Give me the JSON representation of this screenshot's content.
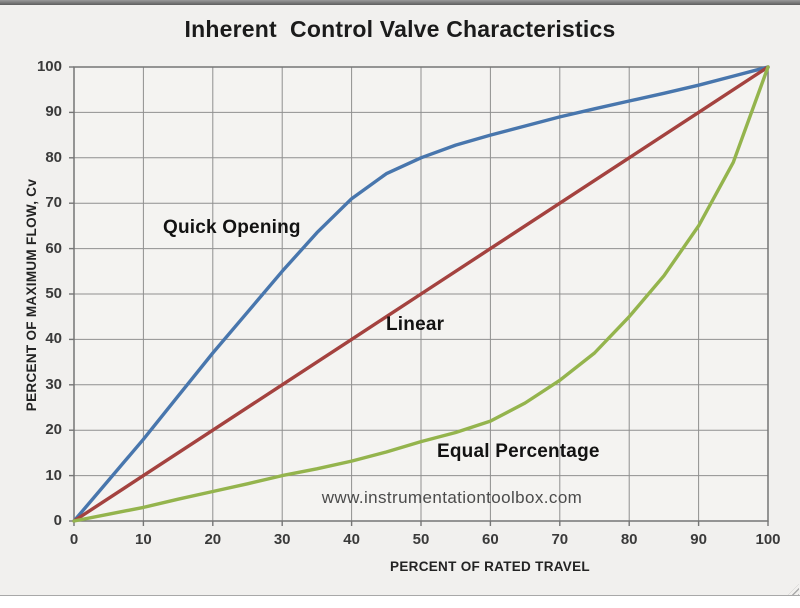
{
  "page": {
    "title": "Inherent  Control Valve Characteristics",
    "watermark": "www.instrumentationtoolbox.com"
  },
  "chart_data": {
    "type": "line",
    "title": "Inherent Control Valve Characteristics",
    "xlabel": "PERCENT OF RATED TRAVEL",
    "ylabel": "PERCENT OF MAXIMUM FLOW, Cv",
    "xlim": [
      0,
      100
    ],
    "ylim": [
      0,
      100
    ],
    "x_ticks": [
      0,
      10,
      20,
      30,
      40,
      50,
      60,
      70,
      80,
      90,
      100
    ],
    "y_ticks": [
      0,
      10,
      20,
      30,
      40,
      50,
      60,
      70,
      80,
      90,
      100
    ],
    "grid": true,
    "legend_position": "inline-labels",
    "plot_bg": "#f4f3f1",
    "gridline_color": "#8f8f8f",
    "border_color": "#757575",
    "series": [
      {
        "name": "Quick Opening",
        "color": "#4876ad",
        "points": [
          [
            0,
            0
          ],
          [
            5,
            9
          ],
          [
            10,
            18
          ],
          [
            15,
            27.5
          ],
          [
            20,
            37
          ],
          [
            25,
            46
          ],
          [
            30,
            55
          ],
          [
            35,
            63.5
          ],
          [
            40,
            71
          ],
          [
            45,
            76.5
          ],
          [
            50,
            80
          ],
          [
            55,
            82.8
          ],
          [
            60,
            85
          ],
          [
            65,
            87
          ],
          [
            70,
            89
          ],
          [
            75,
            90.8
          ],
          [
            80,
            92.5
          ],
          [
            85,
            94.2
          ],
          [
            90,
            96
          ],
          [
            95,
            98
          ],
          [
            100,
            100
          ]
        ]
      },
      {
        "name": "Linear",
        "color": "#a4423f",
        "points": [
          [
            0,
            0
          ],
          [
            10,
            10
          ],
          [
            20,
            20
          ],
          [
            30,
            30
          ],
          [
            40,
            40
          ],
          [
            50,
            50
          ],
          [
            60,
            60
          ],
          [
            70,
            70
          ],
          [
            80,
            80
          ],
          [
            90,
            90
          ],
          [
            100,
            100
          ]
        ]
      },
      {
        "name": "Equal Percentage",
        "color": "#94b44d",
        "points": [
          [
            0,
            0
          ],
          [
            5,
            1.5
          ],
          [
            10,
            3
          ],
          [
            15,
            4.8
          ],
          [
            20,
            6.5
          ],
          [
            25,
            8.2
          ],
          [
            30,
            10
          ],
          [
            35,
            11.5
          ],
          [
            40,
            13.2
          ],
          [
            45,
            15.2
          ],
          [
            50,
            17.5
          ],
          [
            55,
            19.5
          ],
          [
            60,
            22
          ],
          [
            65,
            26
          ],
          [
            70,
            31
          ],
          [
            75,
            37
          ],
          [
            80,
            45
          ],
          [
            85,
            54
          ],
          [
            90,
            65
          ],
          [
            95,
            79
          ],
          [
            100,
            100
          ]
        ]
      }
    ],
    "annotations": [
      {
        "text": "Quick Opening",
        "x": 23,
        "y": 63
      },
      {
        "text": "Linear",
        "x": 50,
        "y": 42
      },
      {
        "text": "Equal Percentage",
        "x": 65,
        "y": 15
      },
      {
        "text": "www.instrumentationtoolbox.com",
        "x": 54,
        "y": 4.5
      }
    ]
  }
}
